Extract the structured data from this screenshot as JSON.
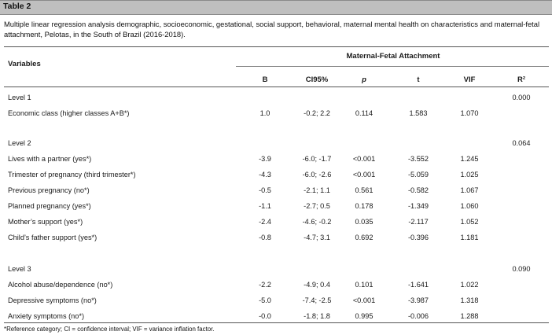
{
  "table_label": "Table 2",
  "caption": "Multiple linear regression analysis demographic, socioeconomic, gestational, social support, behavioral, maternal mental health on characteristics and maternal-fetal attachment, Pelotas, in the South of Brazil (2016-2018).",
  "headers": {
    "variables": "Variables",
    "group": "Maternal-Fetal Attachment",
    "b": "B",
    "ci": "CI95%",
    "p": "p",
    "t": "t",
    "vif": "VIF",
    "r2": "R²"
  },
  "levels": [
    {
      "label": "Level 1",
      "r2": "0.000",
      "rows": [
        {
          "variable": "Economic class (higher classes A+B*)",
          "b": "1.0",
          "ci": "-0.2; 2.2",
          "p": "0.114",
          "t": "1.583",
          "vif": "1.070"
        }
      ]
    },
    {
      "label": "Level 2",
      "r2": "0.064",
      "rows": [
        {
          "variable": "Lives with a partner (yes*)",
          "b": "-3.9",
          "ci": "-6.0; -1.7",
          "p": "<0.001",
          "t": "-3.552",
          "vif": "1.245"
        },
        {
          "variable": "Trimester of pregnancy (third trimester*)",
          "b": "-4.3",
          "ci": "-6.0; -2.6",
          "p": "<0.001",
          "t": "-5.059",
          "vif": "1.025"
        },
        {
          "variable": "Previous pregnancy (no*)",
          "b": "-0.5",
          "ci": "-2.1; 1.1",
          "p": "0.561",
          "t": "-0.582",
          "vif": "1.067"
        },
        {
          "variable": "Planned pregnancy (yes*)",
          "b": "-1.1",
          "ci": "-2.7; 0.5",
          "p": "0.178",
          "t": "-1.349",
          "vif": "1.060"
        },
        {
          "variable": "Mother’s support (yes*)",
          "b": "-2.4",
          "ci": "-4.6; -0.2",
          "p": "0.035",
          "t": "-2.117",
          "vif": "1.052"
        },
        {
          "variable": "Child’s father support (yes*)",
          "b": "-0.8",
          "ci": "-4.7; 3.1",
          "p": "0.692",
          "t": "-0.396",
          "vif": "1.181"
        }
      ]
    },
    {
      "label": "Level 3",
      "r2": "0.090",
      "rows": [
        {
          "variable": "Alcohol abuse/dependence (no*)",
          "b": "-2.2",
          "ci": "-4.9; 0.4",
          "p": "0.101",
          "t": "-1.641",
          "vif": "1.022"
        },
        {
          "variable": "Depressive symptoms (no*)",
          "b": "-5.0",
          "ci": "-7.4; -2.5",
          "p": "<0.001",
          "t": "-3.987",
          "vif": "1.318"
        },
        {
          "variable": "Anxiety symptoms (no*)",
          "b": "-0.0",
          "ci": "-1.8; 1.8",
          "p": "0.995",
          "t": "-0.006",
          "vif": "1.288"
        }
      ]
    }
  ],
  "footnote": "*Reference category; CI = confidence interval; VIF = variance inflation factor."
}
